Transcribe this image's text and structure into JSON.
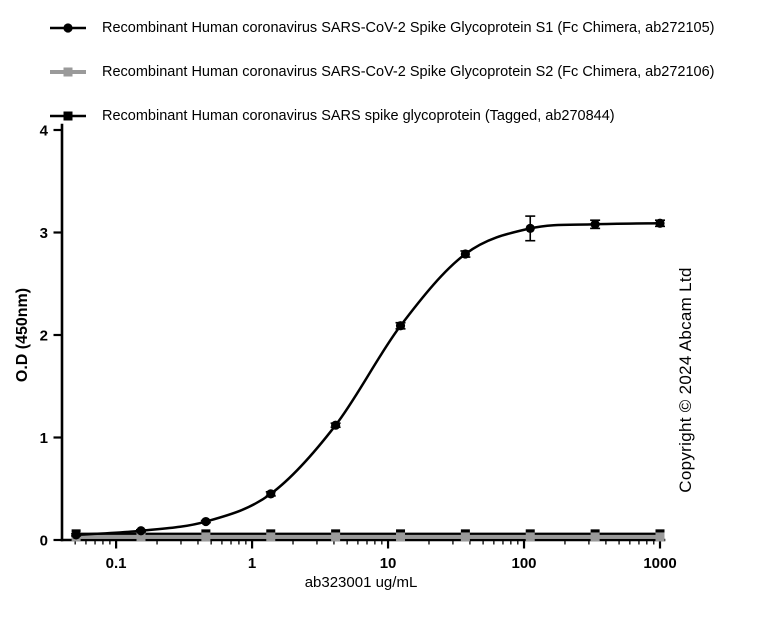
{
  "copyright": "Copyright © 2024 Abcam Ltd",
  "chart_data": {
    "type": "line",
    "title": "",
    "legend_position": "top-left",
    "grid": false,
    "x_axis": {
      "label": "ab323001 ug/mL",
      "scale": "log",
      "min": 0.04,
      "max": 1000,
      "ticks": [
        0.1,
        1,
        10,
        100,
        1000
      ],
      "tick_labels": [
        "0.1",
        "1",
        "10",
        "100",
        "1000"
      ]
    },
    "y_axis": {
      "label": "O.D (450nm)",
      "scale": "linear",
      "min": 0,
      "max": 4,
      "ticks": [
        0,
        1,
        2,
        3,
        4
      ],
      "tick_labels": [
        "0",
        "1",
        "2",
        "3",
        "4"
      ]
    },
    "x": [
      0.0508,
      0.1524,
      0.4572,
      1.372,
      4.115,
      12.35,
      37.04,
      111.1,
      333.3,
      1000
    ],
    "series": [
      {
        "name": "Recombinant Human coronavirus SARS-CoV-2 Spike Glycoprotein S1 (Fc Chimera, ab272105)",
        "color": "#000000",
        "marker": "circle",
        "line": "smooth",
        "values": [
          0.05,
          0.09,
          0.18,
          0.45,
          1.12,
          2.09,
          2.79,
          3.04,
          3.08,
          3.09
        ],
        "errors": [
          0.01,
          0.01,
          0.01,
          0.02,
          0.02,
          0.03,
          0.03,
          0.12,
          0.04,
          0.03
        ]
      },
      {
        "name": "Recombinant Human coronavirus SARS-CoV-2 Spike Glycoprotein S2 (Fc Chimera, ab272106)",
        "color": "#9a9a9a",
        "marker": "square",
        "line": "straight",
        "values": [
          0.03,
          0.03,
          0.03,
          0.03,
          0.03,
          0.03,
          0.03,
          0.03,
          0.03,
          0.03
        ],
        "errors": [
          0,
          0,
          0,
          0,
          0,
          0,
          0,
          0,
          0,
          0
        ]
      },
      {
        "name": "Recombinant Human coronavirus SARS spike glycoprotein (Tagged, ab270844)",
        "color": "#000000",
        "marker": "square",
        "line": "straight",
        "values": [
          0.06,
          0.06,
          0.06,
          0.06,
          0.06,
          0.06,
          0.06,
          0.06,
          0.06,
          0.06
        ],
        "errors": [
          0,
          0,
          0,
          0,
          0,
          0,
          0,
          0,
          0,
          0
        ]
      }
    ]
  }
}
